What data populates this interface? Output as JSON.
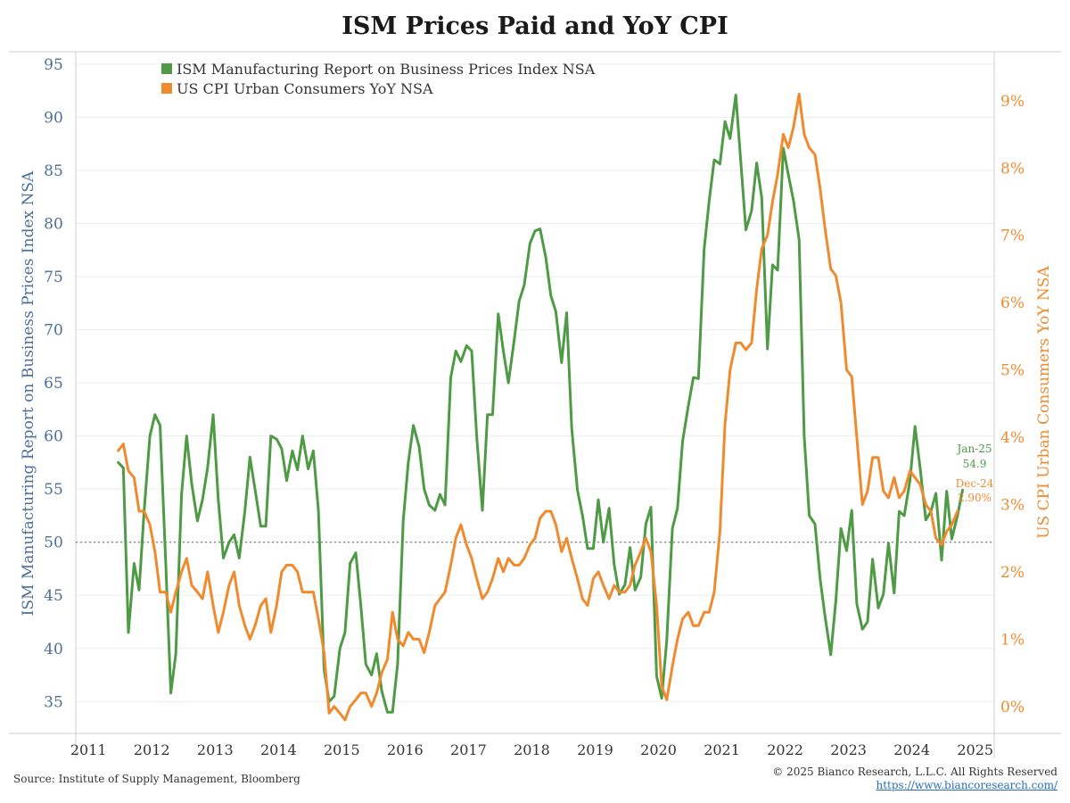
{
  "title": "ISM Prices Paid and YoY CPI",
  "source": "Source: Institute of Supply Management, Bloomberg",
  "copyright": "© 2025 Bianco Research, L.L.C. All Rights Reserved",
  "url": "https://www.biancoresearch.com/",
  "colors": {
    "ism": "#4e9a45",
    "cpi": "#f08a2e",
    "left_axis": "#4a6f9a",
    "right_axis": "#f08a2e"
  },
  "chart_data": {
    "type": "line",
    "title": "ISM Prices Paid and YoY CPI",
    "xlabel": "",
    "ylabel_left": "ISM Manufacturing Report on Business Prices Index NSA",
    "ylabel_right": "US CPI Urban Consumers YoY NSA",
    "x_ticks": [
      "2011",
      "2012",
      "2013",
      "2014",
      "2015",
      "2016",
      "2017",
      "2018",
      "2019",
      "2020",
      "2021",
      "2022",
      "2023",
      "2024",
      "2025"
    ],
    "x_range": [
      2011.0,
      2025.5
    ],
    "y_left_range": [
      32,
      96
    ],
    "y_left_ticks": [
      "35",
      "40",
      "45",
      "50",
      "55",
      "60",
      "65",
      "70",
      "75",
      "80",
      "85",
      "90",
      "95"
    ],
    "y_right_range": [
      -0.4,
      9.7
    ],
    "y_right_ticks": [
      "0%",
      "1%",
      "2%",
      "3%",
      "4%",
      "5%",
      "6%",
      "7%",
      "8%",
      "9%"
    ],
    "reference_line_left": 50,
    "legend_position": "top-left",
    "grid": true,
    "series": [
      {
        "name": "ISM Manufacturing Report on Business Prices Index NSA",
        "axis": "left",
        "x": [
          2011.67,
          2011.75,
          2011.83,
          2011.92,
          2012.0,
          2012.08,
          2012.17,
          2012.25,
          2012.33,
          2012.42,
          2012.5,
          2012.58,
          2012.67,
          2012.75,
          2012.83,
          2012.92,
          2013.0,
          2013.08,
          2013.17,
          2013.25,
          2013.33,
          2013.42,
          2013.5,
          2013.58,
          2013.67,
          2013.75,
          2013.83,
          2013.92,
          2014.0,
          2014.08,
          2014.17,
          2014.25,
          2014.33,
          2014.42,
          2014.5,
          2014.58,
          2014.67,
          2014.75,
          2014.83,
          2014.92,
          2015.0,
          2015.08,
          2015.17,
          2015.25,
          2015.33,
          2015.42,
          2015.5,
          2015.58,
          2015.67,
          2015.75,
          2015.83,
          2015.92,
          2016.0,
          2016.08,
          2016.17,
          2016.25,
          2016.33,
          2016.42,
          2016.5,
          2016.58,
          2016.67,
          2016.75,
          2016.83,
          2016.92,
          2017.0,
          2017.08,
          2017.17,
          2017.25,
          2017.33,
          2017.42,
          2017.5,
          2017.58,
          2017.67,
          2017.75,
          2017.83,
          2017.92,
          2018.0,
          2018.08,
          2018.17,
          2018.25,
          2018.33,
          2018.42,
          2018.5,
          2018.58,
          2018.67,
          2018.75,
          2018.83,
          2018.92,
          2019.0,
          2019.08,
          2019.17,
          2019.25,
          2019.33,
          2019.42,
          2019.5,
          2019.58,
          2019.67,
          2019.75,
          2019.83,
          2019.92,
          2020.0,
          2020.08,
          2020.17,
          2020.25,
          2020.33,
          2020.42,
          2020.5,
          2020.58,
          2020.67,
          2020.75,
          2020.83,
          2020.92,
          2021.0,
          2021.08,
          2021.17,
          2021.25,
          2021.33,
          2021.42,
          2021.5,
          2021.58,
          2021.67,
          2021.75,
          2021.83,
          2021.92,
          2022.0,
          2022.08,
          2022.17,
          2022.25,
          2022.33,
          2022.42,
          2022.5,
          2022.58,
          2022.67,
          2022.75,
          2022.83,
          2022.92,
          2023.0,
          2023.08,
          2023.17,
          2023.25,
          2023.33,
          2023.42,
          2023.5,
          2023.58,
          2023.67,
          2023.75,
          2023.83,
          2023.92,
          2024.0,
          2024.08,
          2024.17,
          2024.25,
          2024.33,
          2024.42,
          2024.5,
          2024.58,
          2024.67,
          2024.75,
          2024.83,
          2024.92,
          2025.0
        ],
        "values": [
          57.5,
          57.0,
          41.5,
          48.0,
          45.5,
          53.0,
          60.0,
          62.0,
          61.0,
          48.0,
          35.8,
          39.5,
          54.5,
          60.0,
          55.5,
          52.0,
          54.0,
          57.0,
          62.0,
          54.0,
          48.5,
          50.0,
          50.7,
          48.5,
          53.0,
          58.0,
          55.0,
          51.5,
          51.5,
          60.0,
          59.7,
          58.8,
          55.8,
          58.6,
          56.8,
          60.0,
          56.9,
          58.6,
          53.0,
          38.0,
          35.0,
          35.5,
          40.0,
          41.5,
          48.0,
          49.0,
          44.0,
          38.5,
          37.5,
          39.5,
          36.0,
          34.0,
          34.0,
          38.5,
          52.0,
          57.5,
          61.0,
          59.0,
          55.0,
          53.5,
          53.0,
          54.5,
          53.5,
          65.5,
          68.0,
          67.0,
          68.5,
          68.0,
          60.0,
          53.0,
          62.0,
          62.0,
          71.5,
          68.0,
          65.0,
          69.0,
          72.7,
          74.2,
          78.1,
          79.3,
          79.5,
          76.8,
          73.2,
          71.7,
          66.9,
          71.6,
          60.7,
          54.9,
          52.5,
          49.4,
          49.4,
          54.0,
          50.0,
          53.2,
          47.9,
          45.1,
          46.0,
          49.5,
          45.5,
          46.7,
          51.7,
          53.3,
          37.4,
          35.3,
          40.8,
          51.3,
          53.2,
          59.5,
          62.8,
          65.5,
          65.4,
          77.6,
          82.1,
          86.0,
          85.6,
          89.6,
          88.0,
          92.1,
          85.7,
          79.4,
          81.2,
          85.7,
          82.4,
          68.2,
          76.1,
          75.6,
          87.1,
          84.6,
          82.2,
          78.5,
          60.0,
          52.5,
          51.7,
          46.6,
          43.0,
          39.4,
          44.5,
          51.3,
          49.2,
          53.0,
          44.2,
          41.8,
          42.5,
          48.4,
          43.8,
          45.1,
          49.9,
          45.2,
          52.9,
          52.5,
          55.8,
          60.9,
          57.0,
          52.1,
          52.9,
          54.6,
          48.3,
          54.8,
          50.3,
          52.5,
          54.9
        ]
      },
      {
        "name": "US CPI Urban Consumers YoY NSA",
        "axis": "right",
        "x": [
          2011.67,
          2011.75,
          2011.83,
          2011.92,
          2012.0,
          2012.08,
          2012.17,
          2012.25,
          2012.33,
          2012.42,
          2012.5,
          2012.58,
          2012.67,
          2012.75,
          2012.83,
          2012.92,
          2013.0,
          2013.08,
          2013.17,
          2013.25,
          2013.33,
          2013.42,
          2013.5,
          2013.58,
          2013.67,
          2013.75,
          2013.83,
          2013.92,
          2014.0,
          2014.08,
          2014.17,
          2014.25,
          2014.33,
          2014.42,
          2014.5,
          2014.58,
          2014.67,
          2014.75,
          2014.83,
          2014.92,
          2015.0,
          2015.08,
          2015.17,
          2015.25,
          2015.33,
          2015.42,
          2015.5,
          2015.58,
          2015.67,
          2015.75,
          2015.83,
          2015.92,
          2016.0,
          2016.08,
          2016.17,
          2016.25,
          2016.33,
          2016.42,
          2016.5,
          2016.58,
          2016.67,
          2016.75,
          2016.83,
          2016.92,
          2017.0,
          2017.08,
          2017.17,
          2017.25,
          2017.33,
          2017.42,
          2017.5,
          2017.58,
          2017.67,
          2017.75,
          2017.83,
          2017.92,
          2018.0,
          2018.08,
          2018.17,
          2018.25,
          2018.33,
          2018.42,
          2018.5,
          2018.58,
          2018.67,
          2018.75,
          2018.83,
          2018.92,
          2019.0,
          2019.08,
          2019.17,
          2019.25,
          2019.33,
          2019.42,
          2019.5,
          2019.58,
          2019.67,
          2019.75,
          2019.83,
          2019.92,
          2020.0,
          2020.08,
          2020.17,
          2020.25,
          2020.33,
          2020.42,
          2020.5,
          2020.58,
          2020.67,
          2020.75,
          2020.83,
          2020.92,
          2021.0,
          2021.08,
          2021.17,
          2021.25,
          2021.33,
          2021.42,
          2021.5,
          2021.58,
          2021.67,
          2021.75,
          2021.83,
          2021.92,
          2022.0,
          2022.08,
          2022.17,
          2022.25,
          2022.33,
          2022.42,
          2022.5,
          2022.58,
          2022.67,
          2022.75,
          2022.83,
          2022.92,
          2023.0,
          2023.08,
          2023.17,
          2023.25,
          2023.33,
          2023.42,
          2023.5,
          2023.58,
          2023.67,
          2023.75,
          2023.83,
          2023.92,
          2024.0,
          2024.08,
          2024.17,
          2024.25,
          2024.33,
          2024.42,
          2024.5,
          2024.58,
          2024.67,
          2024.75,
          2024.83,
          2024.92
        ],
        "values": [
          3.8,
          3.9,
          3.5,
          3.4,
          2.9,
          2.9,
          2.7,
          2.3,
          1.7,
          1.7,
          1.4,
          1.7,
          2.0,
          2.2,
          1.8,
          1.7,
          1.6,
          2.0,
          1.5,
          1.1,
          1.4,
          1.8,
          2.0,
          1.5,
          1.2,
          1.0,
          1.2,
          1.5,
          1.6,
          1.1,
          1.5,
          2.0,
          2.1,
          2.1,
          2.0,
          1.7,
          1.7,
          1.7,
          1.3,
          0.8,
          -0.1,
          0.0,
          -0.1,
          -0.2,
          0.0,
          0.1,
          0.2,
          0.2,
          0.0,
          0.2,
          0.5,
          0.7,
          1.4,
          1.0,
          0.9,
          1.1,
          1.0,
          1.0,
          0.8,
          1.1,
          1.5,
          1.6,
          1.7,
          2.1,
          2.5,
          2.7,
          2.4,
          2.2,
          1.9,
          1.6,
          1.7,
          1.9,
          2.2,
          2.0,
          2.2,
          2.1,
          2.1,
          2.2,
          2.4,
          2.5,
          2.8,
          2.9,
          2.9,
          2.7,
          2.3,
          2.5,
          2.2,
          1.9,
          1.6,
          1.5,
          1.9,
          2.0,
          1.8,
          1.6,
          1.8,
          1.7,
          1.7,
          1.8,
          2.1,
          2.3,
          2.5,
          2.3,
          1.5,
          0.3,
          0.1,
          0.6,
          1.0,
          1.3,
          1.4,
          1.2,
          1.2,
          1.4,
          1.4,
          1.7,
          2.6,
          4.2,
          5.0,
          5.4,
          5.4,
          5.3,
          5.4,
          6.2,
          6.8,
          7.0,
          7.5,
          7.9,
          8.5,
          8.3,
          8.6,
          9.1,
          8.5,
          8.3,
          8.2,
          7.7,
          7.1,
          6.5,
          6.4,
          6.0,
          5.0,
          4.9,
          4.0,
          3.0,
          3.2,
          3.7,
          3.7,
          3.2,
          3.1,
          3.4,
          3.1,
          3.2,
          3.5,
          3.4,
          3.3,
          3.0,
          2.9,
          2.5,
          2.4,
          2.6,
          2.7,
          2.9
        ]
      }
    ],
    "annotations": {
      "ism_last_label": "Jan-25",
      "ism_last_value": "54.9",
      "cpi_last_label": "Dec-24",
      "cpi_last_value": "2.90%"
    }
  }
}
